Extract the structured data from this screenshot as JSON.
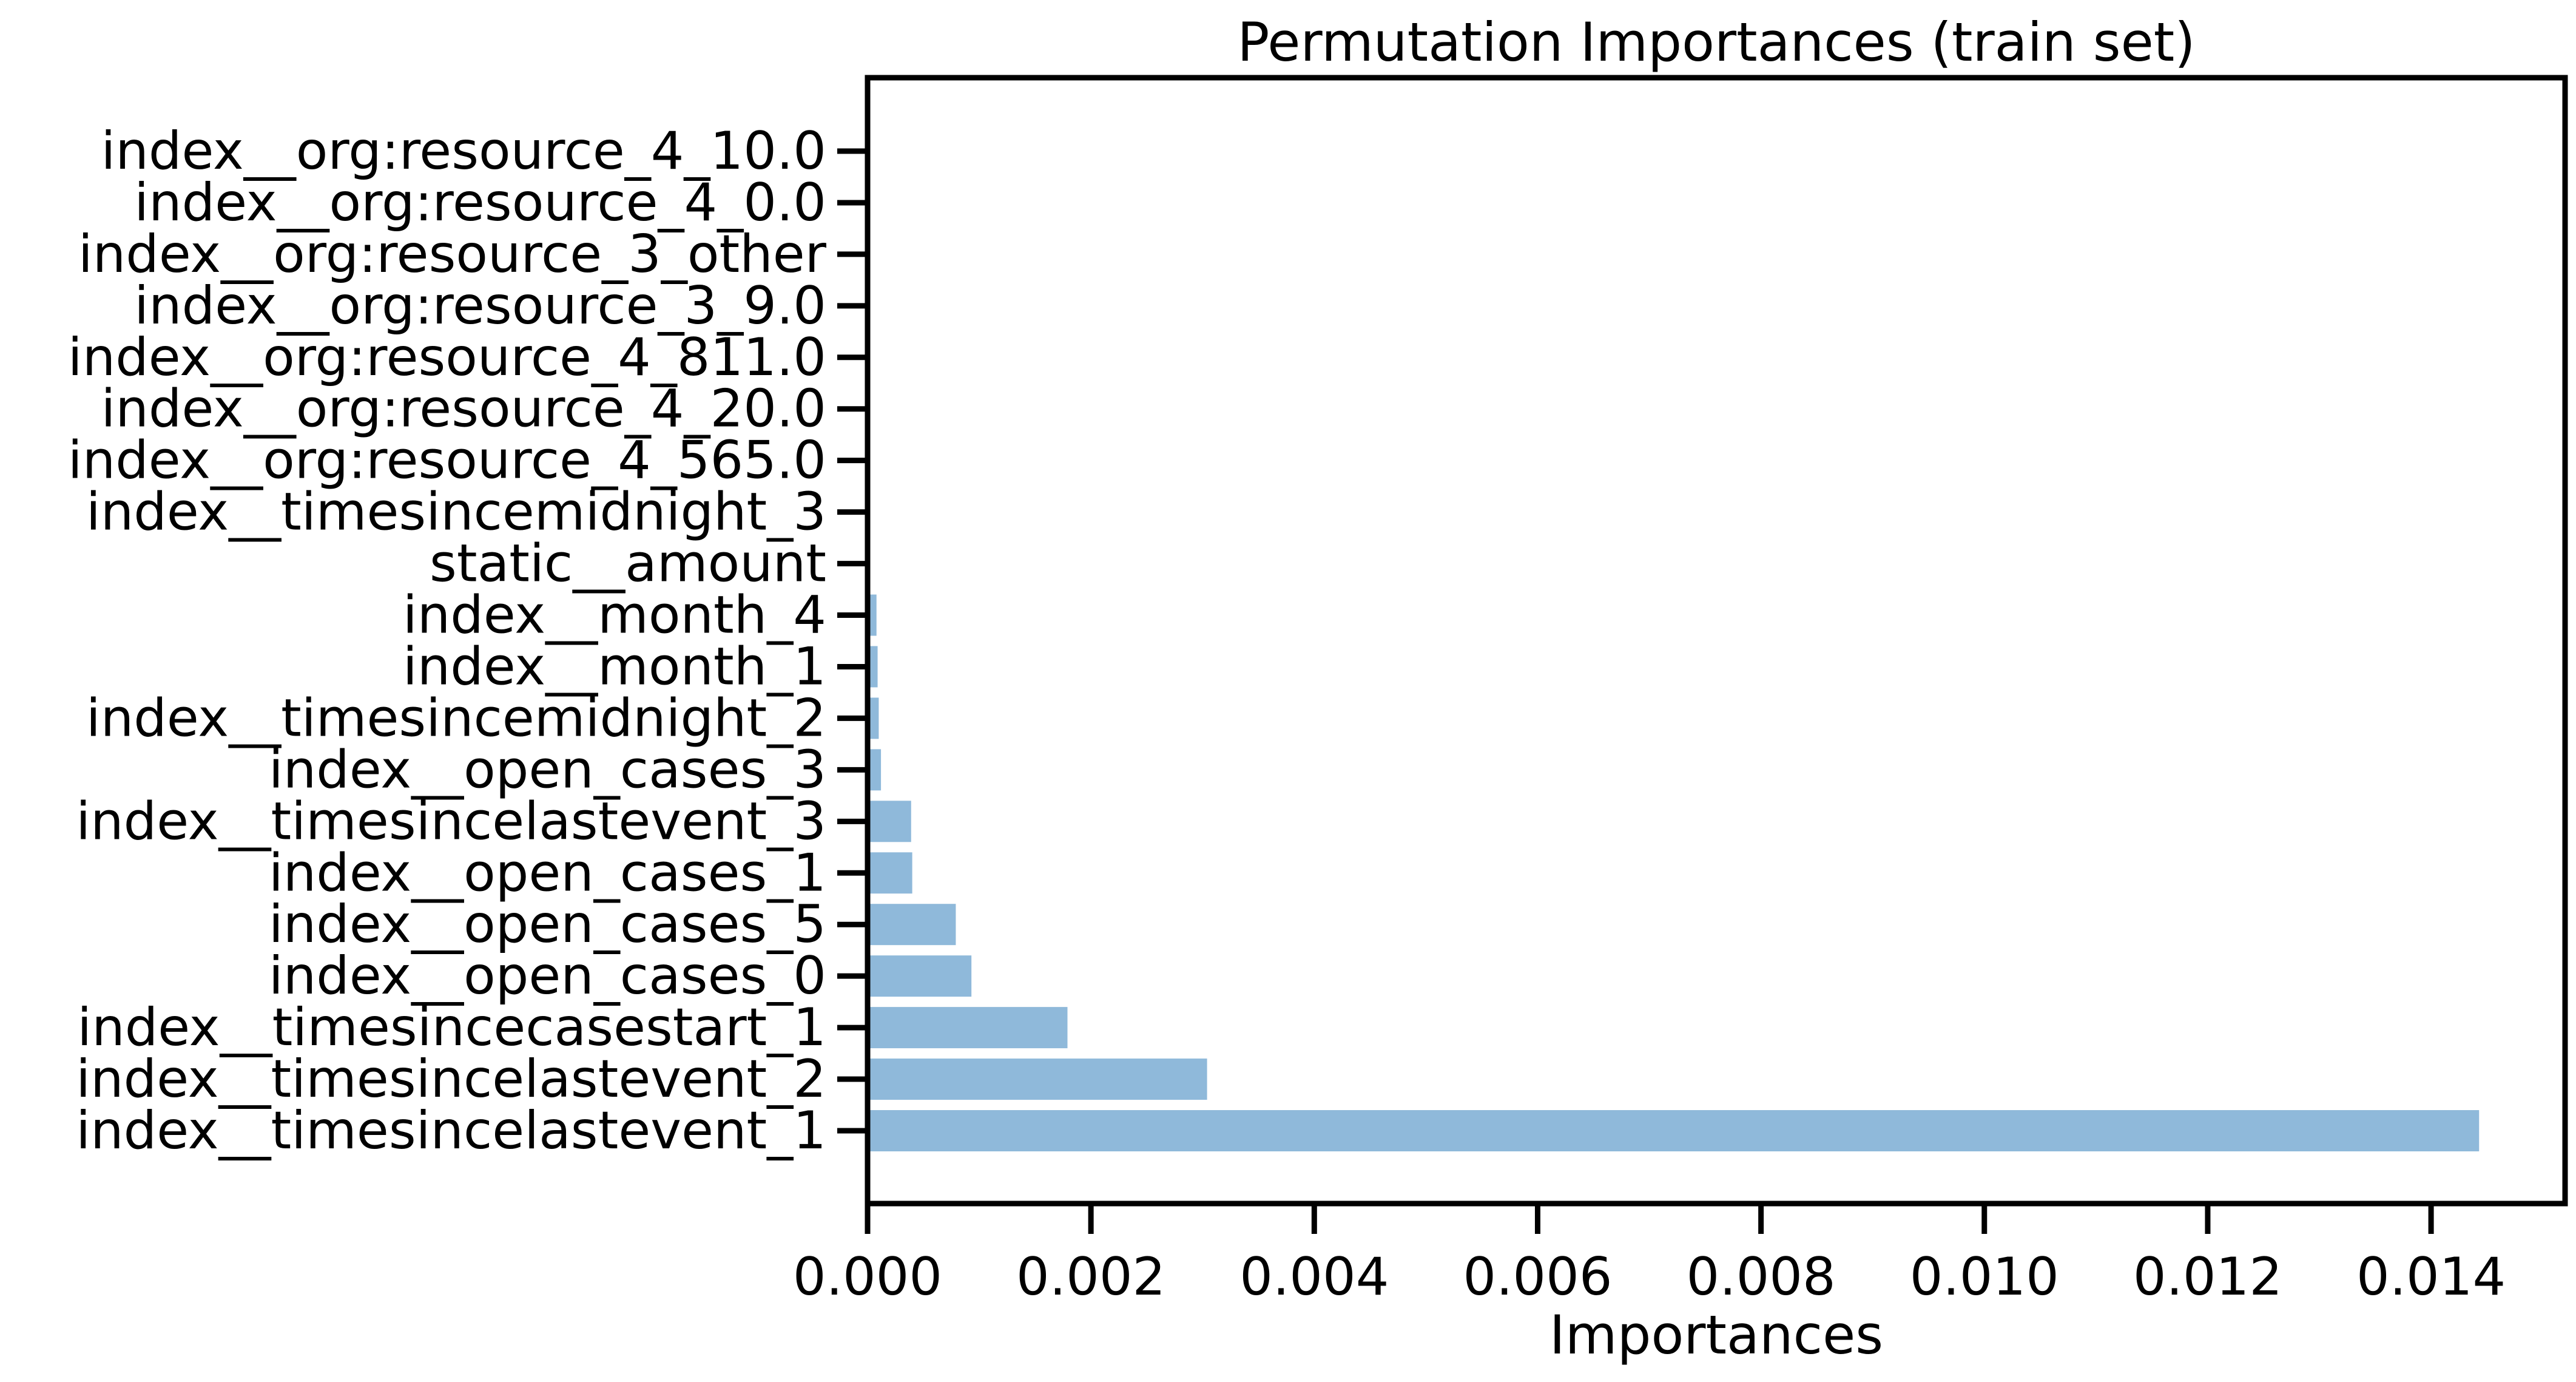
{
  "chart_data": {
    "type": "bar",
    "orientation": "horizontal",
    "title": "Permutation Importances (train set)",
    "xlabel": "Importances",
    "ylabel": "",
    "xlim": [
      0,
      0.0152
    ],
    "x_ticks": [
      "0.000",
      "0.002",
      "0.004",
      "0.006",
      "0.008",
      "0.010",
      "0.012",
      "0.014"
    ],
    "x_tick_values": [
      0,
      0.002,
      0.004,
      0.006,
      0.008,
      0.01,
      0.012,
      0.014
    ],
    "categories": [
      "index__org:resource_4_10.0",
      "index__org:resource_4_0.0",
      "index__org:resource_3_other",
      "index__org:resource_3_9.0",
      "index__org:resource_4_811.0",
      "index__org:resource_4_20.0",
      "index__org:resource_4_565.0",
      "index__timesincemidnight_3",
      "static__amount",
      "index__month_4",
      "index__month_1",
      "index__timesincemidnight_2",
      "index__open_cases_3",
      "index__timesincelastevent_3",
      "index__open_cases_1",
      "index__open_cases_5",
      "index__open_cases_0",
      "index__timesincecasestart_1",
      "index__timesincelastevent_2",
      "index__timesincelastevent_1"
    ],
    "values": [
      0,
      0,
      0,
      0,
      0,
      0,
      0,
      0,
      1e-05,
      8e-05,
      9e-05,
      0.0001,
      0.00012,
      0.00039,
      0.0004,
      0.00079,
      0.00093,
      0.00179,
      0.00304,
      0.01443
    ],
    "bar_color": "#8fb9da",
    "grid": false,
    "legend": "none"
  }
}
